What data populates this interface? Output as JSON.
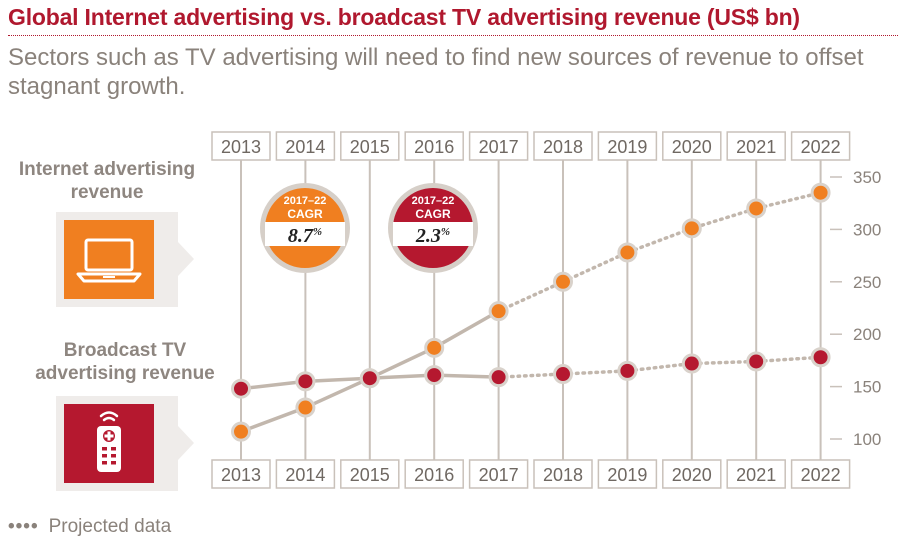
{
  "header": {
    "title": "Global Internet advertising vs. broadcast TV advertising revenue (US$ bn)",
    "subtitle": "Sectors such as TV advertising will need to find new sources of revenue to offset stagnant growth."
  },
  "legend": {
    "internet": {
      "label": "Internet advertising revenue",
      "icon": "laptop-icon",
      "color": "#f07f20"
    },
    "tv": {
      "label": "Broadcast TV advertising revenue",
      "icon": "remote-control-icon",
      "color": "#b5182f"
    },
    "projected": "Projected data"
  },
  "badges": [
    {
      "line1": "2017–22",
      "line2": "CAGR",
      "value": "8.7",
      "unit": "%",
      "color": "#f07f20"
    },
    {
      "line1": "2017–22",
      "line2": "CAGR",
      "value": "2.3",
      "unit": "%",
      "color": "#b5182f"
    }
  ],
  "chart_data": {
    "type": "line",
    "categories": [
      "2013",
      "2014",
      "2015",
      "2016",
      "2017",
      "2018",
      "2019",
      "2020",
      "2021",
      "2022"
    ],
    "series": [
      {
        "name": "Internet advertising revenue",
        "color": "#f07f20",
        "values": [
          107,
          130,
          158,
          187,
          222,
          250,
          278,
          301,
          320,
          335
        ]
      },
      {
        "name": "Broadcast TV advertising revenue",
        "color": "#b5182f",
        "values": [
          148,
          155,
          158,
          161,
          159,
          162,
          165,
          172,
          174,
          178
        ]
      }
    ],
    "projected_from": "2017",
    "yticks": [
      100,
      150,
      200,
      250,
      300,
      350
    ],
    "ylim": [
      100,
      350
    ],
    "grid": false,
    "axis_position": "right"
  }
}
